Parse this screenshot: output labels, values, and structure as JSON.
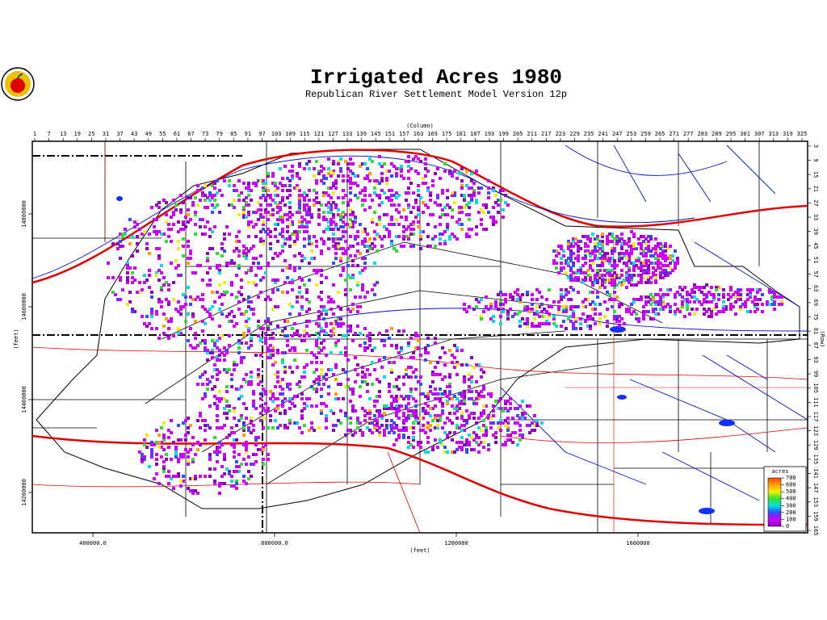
{
  "header": {
    "title": "Irrigated Acres 1980",
    "subtitle": "Republican River Settlement Model Version 12p"
  },
  "map": {
    "column_axis": {
      "label": "(Column)",
      "lim": [
        1,
        325
      ],
      "ticks": [
        1,
        7,
        13,
        19,
        25,
        31,
        37,
        43,
        49,
        55,
        61,
        67,
        73,
        79,
        85,
        91,
        97,
        103,
        109,
        115,
        121,
        127,
        133,
        139,
        145,
        151,
        157,
        163,
        169,
        175,
        181,
        187,
        193,
        199,
        205,
        211,
        217,
        223,
        229,
        235,
        241,
        247,
        253,
        259,
        265,
        271,
        277,
        283,
        289,
        295,
        301,
        307,
        313,
        319,
        325
      ]
    },
    "row_axis": {
      "label": "(Row)",
      "lim": [
        1,
        166
      ],
      "ticks": [
        3,
        9,
        15,
        21,
        27,
        33,
        39,
        45,
        51,
        57,
        63,
        69,
        75,
        81,
        87,
        93,
        99,
        105,
        111,
        117,
        123,
        129,
        135,
        141,
        147,
        153,
        159,
        165
      ]
    },
    "x_axis": {
      "label": "(feet)",
      "lim": [
        266667,
        1973333
      ],
      "ticks": [
        {
          "value": 400000,
          "label": "400000.0"
        },
        {
          "value": 800000,
          "label": "800000.0"
        },
        1200000,
        1600000
      ]
    },
    "y_axis": {
      "label": "(feet)",
      "lim": [
        14113043,
        14956522
      ],
      "ticks": [
        14800000,
        14600000,
        14400000,
        14200000
      ]
    },
    "legend": {
      "title": "acres",
      "ticks": [
        700,
        600,
        500,
        400,
        300,
        200,
        100,
        0
      ],
      "colors": [
        "#ff4000",
        "#ffa000",
        "#f0f000",
        "#30e030",
        "#00e0e0",
        "#3050ff",
        "#d000ff",
        "#9000c0"
      ]
    }
  }
}
